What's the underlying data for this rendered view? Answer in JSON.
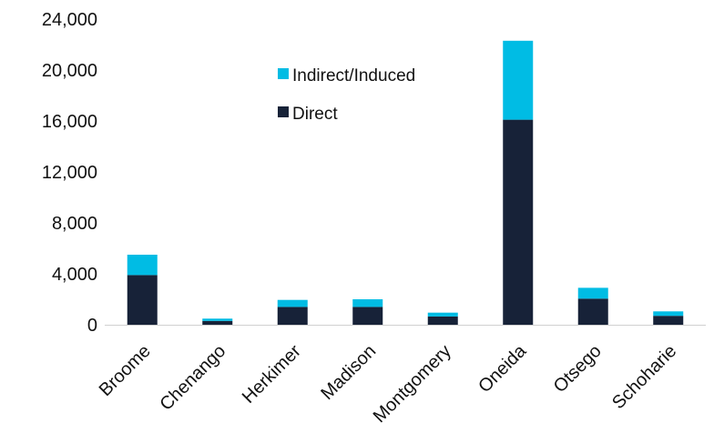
{
  "chart_data": {
    "type": "bar",
    "stacked": true,
    "categories": [
      "Broome",
      "Chenango",
      "Herkimer",
      "Madison",
      "Montgomery",
      "Oneida",
      "Otsego",
      "Schoharie"
    ],
    "series": [
      {
        "name": "Direct",
        "color": "#172238",
        "values": [
          3900,
          300,
          1400,
          1400,
          650,
          16100,
          2050,
          700
        ]
      },
      {
        "name": "Indirect/Induced",
        "color": "#00BCE4",
        "values": [
          1600,
          180,
          550,
          600,
          300,
          6200,
          850,
          350
        ]
      }
    ],
    "y_ticks": [
      "0",
      "4,000",
      "8,000",
      "12,000",
      "16,000",
      "20,000",
      "24,000"
    ],
    "ylim": [
      0,
      24000
    ],
    "grid": false,
    "legend": {
      "position": "top-center",
      "entries": [
        "Indirect/Induced",
        "Direct"
      ]
    }
  }
}
